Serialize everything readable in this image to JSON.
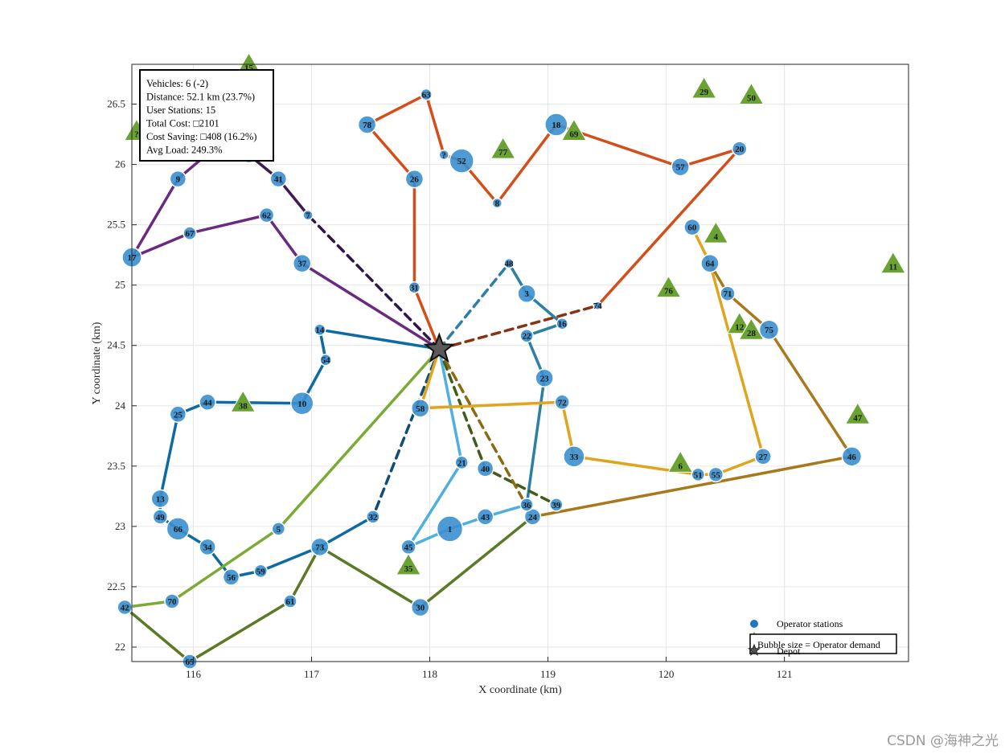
{
  "chart_data": {
    "type": "scatter",
    "xlabel": "X coordinate (km)",
    "ylabel": "Y coordinate (km)",
    "xlim": [
      115.48,
      122.05
    ],
    "ylim": [
      21.88,
      26.83
    ],
    "xticks": [
      116,
      117,
      118,
      119,
      120,
      121
    ],
    "yticks": [
      22,
      22.5,
      23,
      23.5,
      24,
      24.5,
      25,
      25.5,
      26,
      26.5
    ],
    "xtick_labels": [
      "116",
      "117",
      "118",
      "119",
      "120",
      "121"
    ],
    "ytick_labels": [
      "22",
      "22.5",
      "23",
      "23.5",
      "24",
      "24.5",
      "25",
      "25.5",
      "26",
      "26.5"
    ],
    "grid": true,
    "depot": {
      "x": 118.08,
      "y": 24.47
    },
    "info_box": [
      "Vehicles: 6 (-2)",
      "Distance: 52.1 km (23.7%)",
      "User Stations: 15",
      "Total Cost: □2101",
      "Cost Saving: □408 (16.2%)",
      "Avg Load: 249.3%"
    ],
    "legend": {
      "placement": "bottom-right",
      "entries": [
        "Operator stations",
        "User stations (highlighted)",
        "Bubble size = Operator demand",
        "Depot"
      ]
    },
    "operator_stations": [
      {
        "id": "1",
        "x": 118.17,
        "y": 22.98,
        "size": 16
      },
      {
        "id": "3",
        "x": 118.82,
        "y": 24.93,
        "size": 11
      },
      {
        "id": "5",
        "x": 116.72,
        "y": 22.98,
        "size": 8
      },
      {
        "id": "7",
        "x": 116.97,
        "y": 25.58,
        "size": 6
      },
      {
        "id": "8",
        "x": 118.57,
        "y": 25.68,
        "size": 6
      },
      {
        "id": "9",
        "x": 115.87,
        "y": 25.88,
        "size": 10
      },
      {
        "id": "10",
        "x": 116.92,
        "y": 24.02,
        "size": 14
      },
      {
        "id": "13",
        "x": 115.72,
        "y": 23.23,
        "size": 11
      },
      {
        "id": "14",
        "x": 117.07,
        "y": 24.63,
        "size": 7
      },
      {
        "id": "16",
        "x": 119.12,
        "y": 24.68,
        "size": 7
      },
      {
        "id": "17",
        "x": 115.48,
        "y": 25.23,
        "size": 12
      },
      {
        "id": "18",
        "x": 119.07,
        "y": 26.33,
        "size": 14
      },
      {
        "id": "20",
        "x": 120.62,
        "y": 26.13,
        "size": 9
      },
      {
        "id": "21",
        "x": 118.27,
        "y": 23.53,
        "size": 8
      },
      {
        "id": "22",
        "x": 118.82,
        "y": 24.58,
        "size": 8
      },
      {
        "id": "23",
        "x": 118.97,
        "y": 24.23,
        "size": 11
      },
      {
        "id": "24",
        "x": 118.87,
        "y": 23.08,
        "size": 10
      },
      {
        "id": "25",
        "x": 115.87,
        "y": 23.93,
        "size": 10
      },
      {
        "id": "26",
        "x": 117.87,
        "y": 25.88,
        "size": 11
      },
      {
        "id": "27",
        "x": 120.82,
        "y": 23.58,
        "size": 10
      },
      {
        "id": "30",
        "x": 117.92,
        "y": 22.33,
        "size": 11
      },
      {
        "id": "31",
        "x": 117.87,
        "y": 24.98,
        "size": 7
      },
      {
        "id": "32",
        "x": 117.52,
        "y": 23.08,
        "size": 8
      },
      {
        "id": "33",
        "x": 119.22,
        "y": 23.58,
        "size": 13
      },
      {
        "id": "34",
        "x": 116.12,
        "y": 22.83,
        "size": 10
      },
      {
        "id": "36",
        "x": 118.82,
        "y": 23.18,
        "size": 8
      },
      {
        "id": "37",
        "x": 116.92,
        "y": 25.18,
        "size": 11
      },
      {
        "id": "39",
        "x": 119.07,
        "y": 23.18,
        "size": 8
      },
      {
        "id": "40",
        "x": 118.47,
        "y": 23.48,
        "size": 10
      },
      {
        "id": "41",
        "x": 116.72,
        "y": 25.88,
        "size": 10
      },
      {
        "id": "42",
        "x": 115.42,
        "y": 22.33,
        "size": 9
      },
      {
        "id": "43",
        "x": 118.47,
        "y": 23.08,
        "size": 10
      },
      {
        "id": "44",
        "x": 116.12,
        "y": 24.03,
        "size": 10
      },
      {
        "id": "45",
        "x": 117.82,
        "y": 22.83,
        "size": 9
      },
      {
        "id": "46",
        "x": 121.57,
        "y": 23.58,
        "size": 12
      },
      {
        "id": "48",
        "x": 118.67,
        "y": 25.18,
        "size": 6
      },
      {
        "id": "49",
        "x": 115.72,
        "y": 23.08,
        "size": 9
      },
      {
        "id": "51",
        "x": 120.27,
        "y": 23.43,
        "size": 8
      },
      {
        "id": "52",
        "x": 118.27,
        "y": 26.03,
        "size": 15
      },
      {
        "id": "54",
        "x": 117.12,
        "y": 24.38,
        "size": 7
      },
      {
        "id": "55",
        "x": 120.42,
        "y": 23.43,
        "size": 9
      },
      {
        "id": "56",
        "x": 116.32,
        "y": 22.58,
        "size": 10
      },
      {
        "id": "57",
        "x": 120.12,
        "y": 25.98,
        "size": 11
      },
      {
        "id": "58",
        "x": 117.92,
        "y": 23.98,
        "size": 11
      },
      {
        "id": "59",
        "x": 116.57,
        "y": 22.63,
        "size": 8
      },
      {
        "id": "60",
        "x": 120.22,
        "y": 25.48,
        "size": 10
      },
      {
        "id": "61",
        "x": 116.82,
        "y": 22.38,
        "size": 8
      },
      {
        "id": "62",
        "x": 116.62,
        "y": 25.58,
        "size": 9
      },
      {
        "id": "63",
        "x": 117.97,
        "y": 26.58,
        "size": 7
      },
      {
        "id": "64",
        "x": 120.37,
        "y": 25.18,
        "size": 11
      },
      {
        "id": "65",
        "x": 115.97,
        "y": 21.88,
        "size": 9
      },
      {
        "id": "66",
        "x": 115.87,
        "y": 22.98,
        "size": 14
      },
      {
        "id": "67",
        "x": 115.97,
        "y": 25.43,
        "size": 8
      },
      {
        "id": "70",
        "x": 115.82,
        "y": 22.38,
        "size": 9
      },
      {
        "id": "71",
        "x": 120.52,
        "y": 24.93,
        "size": 9
      },
      {
        "id": "72",
        "x": 119.12,
        "y": 24.03,
        "size": 9
      },
      {
        "id": "73",
        "x": 117.07,
        "y": 22.83,
        "size": 11
      },
      {
        "id": "74",
        "x": 119.42,
        "y": 24.83,
        "size": 5
      },
      {
        "id": "75",
        "x": 120.87,
        "y": 24.63,
        "size": 12
      },
      {
        "id": "78",
        "x": 117.47,
        "y": 26.33,
        "size": 11
      },
      {
        "id": "?",
        "x": 116.47,
        "y": 26.08,
        "size": 10
      },
      {
        "id": "?",
        "x": 118.12,
        "y": 26.08,
        "size": 6
      }
    ],
    "user_stations": [
      {
        "id": "4",
        "x": 120.42,
        "y": 25.43
      },
      {
        "id": "6",
        "x": 120.12,
        "y": 23.53
      },
      {
        "id": "11",
        "x": 121.92,
        "y": 25.18
      },
      {
        "id": "12",
        "x": 120.62,
        "y": 24.68
      },
      {
        "id": "15",
        "x": 116.47,
        "y": 26.83
      },
      {
        "id": "28",
        "x": 120.72,
        "y": 24.63
      },
      {
        "id": "29",
        "x": 120.32,
        "y": 26.63
      },
      {
        "id": "35",
        "x": 117.82,
        "y": 22.68
      },
      {
        "id": "38",
        "x": 116.42,
        "y": 24.03
      },
      {
        "id": "47",
        "x": 121.62,
        "y": 23.93
      },
      {
        "id": "50",
        "x": 120.72,
        "y": 26.58
      },
      {
        "id": "69",
        "x": 119.22,
        "y": 26.28
      },
      {
        "id": "76",
        "x": 120.02,
        "y": 24.98
      },
      {
        "id": "77",
        "x": 118.62,
        "y": 26.13
      },
      {
        "id": "?",
        "x": 115.52,
        "y": 26.28
      }
    ],
    "routes": [
      {
        "color": "#2f1648",
        "path": [
          [
            118.08,
            24.47
          ],
          [
            116.97,
            25.58
          ]
        ],
        "dashed": true
      },
      {
        "color": "#6a2a7e",
        "path": [
          [
            118.08,
            24.47
          ],
          [
            116.92,
            25.18
          ],
          [
            116.62,
            25.58
          ],
          [
            115.97,
            25.43
          ],
          [
            115.48,
            25.23
          ],
          [
            115.87,
            25.88
          ],
          [
            116.17,
            26.13
          ]
        ]
      },
      {
        "color": "#3e1a52",
        "path": [
          [
            116.47,
            26.08
          ],
          [
            116.72,
            25.88
          ],
          [
            116.97,
            25.58
          ]
        ]
      },
      {
        "color": "#d44e1a",
        "path": [
          [
            118.08,
            24.47
          ],
          [
            117.87,
            24.98
          ],
          [
            117.87,
            25.88
          ],
          [
            117.47,
            26.33
          ],
          [
            117.97,
            26.58
          ],
          [
            118.12,
            26.08
          ],
          [
            118.27,
            26.03
          ],
          [
            118.57,
            25.68
          ],
          [
            119.07,
            26.33
          ],
          [
            120.12,
            25.98
          ],
          [
            120.62,
            26.13
          ],
          [
            119.42,
            24.83
          ]
        ]
      },
      {
        "color": "#8a3312",
        "path": [
          [
            118.08,
            24.47
          ],
          [
            119.42,
            24.83
          ]
        ],
        "dashed": true
      },
      {
        "color": "#0c6aa4",
        "path": [
          [
            118.08,
            24.47
          ],
          [
            117.07,
            24.63
          ],
          [
            117.12,
            24.38
          ],
          [
            116.92,
            24.02
          ],
          [
            116.12,
            24.03
          ],
          [
            115.87,
            23.93
          ],
          [
            115.72,
            23.23
          ],
          [
            115.72,
            23.08
          ],
          [
            115.87,
            22.98
          ],
          [
            116.12,
            22.83
          ],
          [
            116.32,
            22.58
          ],
          [
            116.57,
            22.63
          ],
          [
            117.07,
            22.83
          ],
          [
            117.52,
            23.08
          ]
        ]
      },
      {
        "color": "#0f4d78",
        "path": [
          [
            118.08,
            24.47
          ],
          [
            117.52,
            23.08
          ]
        ],
        "dashed": true
      },
      {
        "color": "#4eb0e0",
        "path": [
          [
            118.08,
            24.47
          ],
          [
            118.27,
            23.53
          ],
          [
            117.82,
            22.83
          ],
          [
            118.17,
            22.98
          ],
          [
            118.47,
            23.08
          ],
          [
            118.82,
            23.18
          ]
        ]
      },
      {
        "color": "#2c7fa5",
        "path": [
          [
            118.08,
            24.47
          ],
          [
            118.67,
            25.18
          ]
        ],
        "dashed": true
      },
      {
        "color": "#2c7fa5",
        "path": [
          [
            118.67,
            25.18
          ],
          [
            118.82,
            24.93
          ],
          [
            119.12,
            24.68
          ],
          [
            118.82,
            24.58
          ],
          [
            118.97,
            24.23
          ],
          [
            118.82,
            23.18
          ]
        ]
      },
      {
        "color": "#7aab35",
        "path": [
          [
            118.08,
            24.47
          ],
          [
            116.72,
            22.98
          ],
          [
            115.82,
            22.38
          ],
          [
            115.42,
            22.33
          ]
        ]
      },
      {
        "color": "#5a7a25",
        "path": [
          [
            115.42,
            22.33
          ],
          [
            115.97,
            21.88
          ],
          [
            116.82,
            22.38
          ],
          [
            117.07,
            22.83
          ],
          [
            117.92,
            22.33
          ],
          [
            118.87,
            23.08
          ]
        ]
      },
      {
        "color": "#415c1a",
        "path": [
          [
            118.08,
            24.47
          ],
          [
            118.47,
            23.48
          ],
          [
            119.07,
            23.18
          ]
        ],
        "dashed": true
      },
      {
        "color": "#e0a41f",
        "path": [
          [
            118.08,
            24.47
          ],
          [
            117.92,
            23.98
          ],
          [
            119.12,
            24.03
          ],
          [
            119.22,
            23.58
          ],
          [
            120.27,
            23.43
          ],
          [
            120.42,
            23.43
          ],
          [
            120.82,
            23.58
          ],
          [
            120.37,
            25.18
          ],
          [
            120.22,
            25.48
          ]
        ]
      },
      {
        "color": "#8a6a14",
        "path": [
          [
            118.08,
            24.47
          ],
          [
            118.87,
            23.08
          ]
        ],
        "dashed": true
      },
      {
        "color": "#a7791a",
        "path": [
          [
            118.87,
            23.08
          ],
          [
            121.57,
            23.58
          ],
          [
            120.87,
            24.63
          ],
          [
            120.52,
            24.93
          ],
          [
            120.37,
            25.18
          ]
        ]
      }
    ]
  },
  "watermark": "CSDN @海神之光"
}
